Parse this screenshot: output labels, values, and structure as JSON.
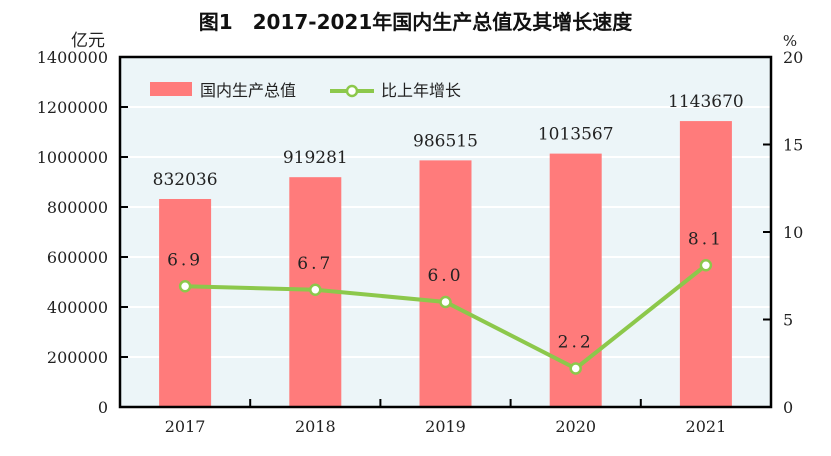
{
  "chart_data": {
    "type": "bar",
    "title": "图1　2017-2021年国内生产总值及其增长速度",
    "categories": [
      "2017",
      "2018",
      "2019",
      "2020",
      "2021"
    ],
    "y_left_label": "亿元",
    "y_right_label": "%",
    "y_left_lim": [
      0,
      1400000
    ],
    "y_left_ticks": [
      0,
      200000,
      400000,
      600000,
      800000,
      1000000,
      1200000,
      1400000
    ],
    "y_right_lim": [
      0,
      20
    ],
    "y_right_ticks": [
      0,
      5,
      10,
      15,
      20
    ],
    "grid": true,
    "legend_placement": "top-left",
    "series": [
      {
        "name": "国内生产总值",
        "type": "bar",
        "axis": "left",
        "color": "#ff7b7b",
        "values": [
          832036,
          919281,
          986515,
          1013567,
          1143670
        ],
        "labels": [
          "832036",
          "919281",
          "986515",
          "1013567",
          "1143670"
        ]
      },
      {
        "name": "比上年增长",
        "type": "line",
        "axis": "right",
        "color": "#8cc84b",
        "values": [
          6.9,
          6.7,
          6.0,
          2.2,
          8.1
        ],
        "labels": [
          "6.9",
          "6.7",
          "6.0",
          "2.2",
          "8.1"
        ]
      }
    ],
    "background_color": "#ecf5f8"
  }
}
